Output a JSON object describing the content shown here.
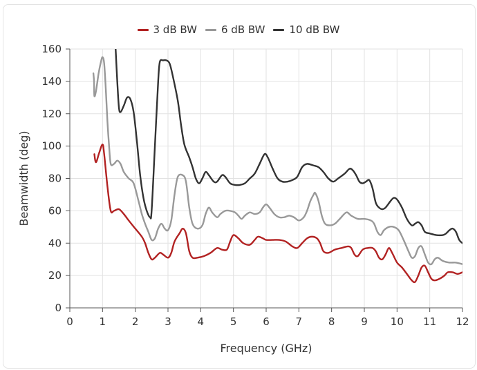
{
  "chart_data": {
    "type": "line",
    "title": "",
    "xlabel": "Frequency (GHz)",
    "ylabel": "Beamwidth (deg)",
    "xlim": [
      0,
      12
    ],
    "ylim": [
      0,
      160
    ],
    "xticks": [
      0,
      1,
      2,
      3,
      4,
      5,
      6,
      7,
      8,
      9,
      10,
      11,
      12
    ],
    "yticks": [
      0,
      20,
      40,
      60,
      80,
      100,
      120,
      140,
      160
    ],
    "grid": true,
    "legend_position": "top-center",
    "series": [
      {
        "name": "3 dB BW",
        "color": "#b22222",
        "points": [
          [
            0.75,
            95
          ],
          [
            0.8,
            90
          ],
          [
            0.9,
            96
          ],
          [
            1.0,
            101
          ],
          [
            1.05,
            95
          ],
          [
            1.15,
            75
          ],
          [
            1.25,
            60
          ],
          [
            1.35,
            60
          ],
          [
            1.5,
            61
          ],
          [
            1.65,
            58
          ],
          [
            1.8,
            54
          ],
          [
            2.0,
            49
          ],
          [
            2.2,
            44
          ],
          [
            2.3,
            40
          ],
          [
            2.4,
            34
          ],
          [
            2.5,
            30
          ],
          [
            2.6,
            31
          ],
          [
            2.75,
            34
          ],
          [
            2.85,
            33
          ],
          [
            3.0,
            31
          ],
          [
            3.1,
            34
          ],
          [
            3.2,
            41
          ],
          [
            3.35,
            46
          ],
          [
            3.45,
            49
          ],
          [
            3.55,
            46
          ],
          [
            3.65,
            35
          ],
          [
            3.75,
            31
          ],
          [
            3.9,
            31
          ],
          [
            4.1,
            32
          ],
          [
            4.3,
            34
          ],
          [
            4.5,
            37
          ],
          [
            4.65,
            36
          ],
          [
            4.8,
            36
          ],
          [
            4.9,
            41
          ],
          [
            5.0,
            45
          ],
          [
            5.15,
            43
          ],
          [
            5.3,
            40
          ],
          [
            5.5,
            39
          ],
          [
            5.65,
            42
          ],
          [
            5.75,
            44
          ],
          [
            5.9,
            43
          ],
          [
            6.0,
            42
          ],
          [
            6.2,
            42
          ],
          [
            6.4,
            42
          ],
          [
            6.6,
            41
          ],
          [
            6.8,
            38
          ],
          [
            6.95,
            37
          ],
          [
            7.1,
            40
          ],
          [
            7.25,
            43
          ],
          [
            7.4,
            44
          ],
          [
            7.55,
            43
          ],
          [
            7.65,
            40
          ],
          [
            7.75,
            35
          ],
          [
            7.9,
            34
          ],
          [
            8.1,
            36
          ],
          [
            8.3,
            37
          ],
          [
            8.5,
            38
          ],
          [
            8.6,
            37
          ],
          [
            8.7,
            33
          ],
          [
            8.8,
            32
          ],
          [
            8.95,
            36
          ],
          [
            9.1,
            37
          ],
          [
            9.25,
            37
          ],
          [
            9.35,
            35
          ],
          [
            9.45,
            31
          ],
          [
            9.55,
            30
          ],
          [
            9.65,
            33
          ],
          [
            9.75,
            37
          ],
          [
            9.85,
            34
          ],
          [
            10.0,
            28
          ],
          [
            10.15,
            25
          ],
          [
            10.3,
            21
          ],
          [
            10.45,
            17
          ],
          [
            10.55,
            16
          ],
          [
            10.65,
            20
          ],
          [
            10.75,
            25
          ],
          [
            10.85,
            26
          ],
          [
            10.95,
            22
          ],
          [
            11.05,
            18
          ],
          [
            11.15,
            17
          ],
          [
            11.3,
            18
          ],
          [
            11.45,
            20
          ],
          [
            11.55,
            22
          ],
          [
            11.7,
            22
          ],
          [
            11.85,
            21
          ],
          [
            12.0,
            22
          ]
        ]
      },
      {
        "name": "6 dB BW",
        "color": "#999999",
        "points": [
          [
            0.72,
            145
          ],
          [
            0.74,
            140
          ],
          [
            0.75,
            131
          ],
          [
            0.8,
            134
          ],
          [
            0.88,
            145
          ],
          [
            0.95,
            152
          ],
          [
            1.0,
            155
          ],
          [
            1.05,
            151
          ],
          [
            1.1,
            135
          ],
          [
            1.15,
            115
          ],
          [
            1.2,
            100
          ],
          [
            1.25,
            89
          ],
          [
            1.35,
            89
          ],
          [
            1.45,
            91
          ],
          [
            1.55,
            89
          ],
          [
            1.65,
            84
          ],
          [
            1.8,
            80
          ],
          [
            1.95,
            77
          ],
          [
            2.1,
            66
          ],
          [
            2.2,
            58
          ],
          [
            2.3,
            52
          ],
          [
            2.4,
            47
          ],
          [
            2.5,
            42
          ],
          [
            2.6,
            43
          ],
          [
            2.7,
            49
          ],
          [
            2.8,
            52
          ],
          [
            2.9,
            49
          ],
          [
            3.0,
            48
          ],
          [
            3.1,
            54
          ],
          [
            3.2,
            70
          ],
          [
            3.3,
            81
          ],
          [
            3.45,
            82
          ],
          [
            3.55,
            78
          ],
          [
            3.65,
            62
          ],
          [
            3.75,
            52
          ],
          [
            3.9,
            49
          ],
          [
            4.05,
            51
          ],
          [
            4.15,
            58
          ],
          [
            4.25,
            62
          ],
          [
            4.35,
            59
          ],
          [
            4.5,
            56
          ],
          [
            4.6,
            58
          ],
          [
            4.75,
            60
          ],
          [
            4.9,
            60
          ],
          [
            5.05,
            59
          ],
          [
            5.15,
            57
          ],
          [
            5.25,
            55
          ],
          [
            5.35,
            57
          ],
          [
            5.5,
            59
          ],
          [
            5.65,
            58
          ],
          [
            5.8,
            59
          ],
          [
            5.9,
            62
          ],
          [
            6.0,
            64
          ],
          [
            6.1,
            62
          ],
          [
            6.25,
            58
          ],
          [
            6.4,
            56
          ],
          [
            6.55,
            56
          ],
          [
            6.7,
            57
          ],
          [
            6.85,
            56
          ],
          [
            7.0,
            54
          ],
          [
            7.15,
            56
          ],
          [
            7.25,
            60
          ],
          [
            7.35,
            66
          ],
          [
            7.45,
            70
          ],
          [
            7.5,
            71
          ],
          [
            7.6,
            66
          ],
          [
            7.7,
            57
          ],
          [
            7.8,
            52
          ],
          [
            7.95,
            51
          ],
          [
            8.1,
            52
          ],
          [
            8.25,
            55
          ],
          [
            8.45,
            59
          ],
          [
            8.6,
            57
          ],
          [
            8.8,
            55
          ],
          [
            9.0,
            55
          ],
          [
            9.2,
            54
          ],
          [
            9.3,
            52
          ],
          [
            9.4,
            47
          ],
          [
            9.5,
            45
          ],
          [
            9.6,
            48
          ],
          [
            9.75,
            50
          ],
          [
            9.9,
            50
          ],
          [
            10.05,
            48
          ],
          [
            10.2,
            42
          ],
          [
            10.35,
            35
          ],
          [
            10.45,
            31
          ],
          [
            10.55,
            32
          ],
          [
            10.65,
            37
          ],
          [
            10.75,
            38
          ],
          [
            10.85,
            33
          ],
          [
            10.95,
            28
          ],
          [
            11.05,
            27
          ],
          [
            11.15,
            30
          ],
          [
            11.25,
            31
          ],
          [
            11.4,
            29
          ],
          [
            11.6,
            28
          ],
          [
            11.8,
            28
          ],
          [
            12.0,
            27
          ]
        ]
      },
      {
        "name": "10 dB BW",
        "color": "#333333",
        "points": [
          [
            1.4,
            160
          ],
          [
            1.45,
            140
          ],
          [
            1.5,
            124
          ],
          [
            1.55,
            121
          ],
          [
            1.65,
            125
          ],
          [
            1.75,
            130
          ],
          [
            1.85,
            129
          ],
          [
            1.95,
            121
          ],
          [
            2.05,
            103
          ],
          [
            2.15,
            82
          ],
          [
            2.25,
            68
          ],
          [
            2.35,
            60
          ],
          [
            2.45,
            56
          ],
          [
            2.5,
            60
          ],
          [
            2.6,
            100
          ],
          [
            2.7,
            140
          ],
          [
            2.75,
            152
          ],
          [
            2.85,
            153
          ],
          [
            2.95,
            153
          ],
          [
            3.05,
            151
          ],
          [
            3.15,
            143
          ],
          [
            3.3,
            128
          ],
          [
            3.4,
            113
          ],
          [
            3.5,
            101
          ],
          [
            3.65,
            93
          ],
          [
            3.75,
            87
          ],
          [
            3.85,
            80
          ],
          [
            3.95,
            77
          ],
          [
            4.05,
            80
          ],
          [
            4.15,
            84
          ],
          [
            4.25,
            82
          ],
          [
            4.4,
            78
          ],
          [
            4.5,
            78
          ],
          [
            4.65,
            82
          ],
          [
            4.75,
            81
          ],
          [
            4.9,
            77
          ],
          [
            5.05,
            76
          ],
          [
            5.2,
            76
          ],
          [
            5.35,
            77
          ],
          [
            5.5,
            80
          ],
          [
            5.65,
            83
          ],
          [
            5.8,
            89
          ],
          [
            5.95,
            95
          ],
          [
            6.05,
            93
          ],
          [
            6.2,
            86
          ],
          [
            6.35,
            80
          ],
          [
            6.5,
            78
          ],
          [
            6.65,
            78
          ],
          [
            6.8,
            79
          ],
          [
            6.95,
            81
          ],
          [
            7.1,
            87
          ],
          [
            7.25,
            89
          ],
          [
            7.45,
            88
          ],
          [
            7.6,
            87
          ],
          [
            7.75,
            84
          ],
          [
            7.9,
            80
          ],
          [
            8.05,
            78
          ],
          [
            8.2,
            80
          ],
          [
            8.4,
            83
          ],
          [
            8.55,
            86
          ],
          [
            8.65,
            85
          ],
          [
            8.75,
            82
          ],
          [
            8.85,
            78
          ],
          [
            8.95,
            77
          ],
          [
            9.05,
            78
          ],
          [
            9.15,
            79
          ],
          [
            9.25,
            74
          ],
          [
            9.35,
            65
          ],
          [
            9.45,
            62
          ],
          [
            9.55,
            61
          ],
          [
            9.65,
            62
          ],
          [
            9.8,
            66
          ],
          [
            9.9,
            68
          ],
          [
            10.0,
            67
          ],
          [
            10.15,
            62
          ],
          [
            10.3,
            55
          ],
          [
            10.45,
            51
          ],
          [
            10.55,
            52
          ],
          [
            10.65,
            53
          ],
          [
            10.75,
            51
          ],
          [
            10.85,
            47
          ],
          [
            11.0,
            46
          ],
          [
            11.2,
            45
          ],
          [
            11.4,
            45
          ],
          [
            11.5,
            46
          ],
          [
            11.6,
            48
          ],
          [
            11.7,
            49
          ],
          [
            11.8,
            47
          ],
          [
            11.9,
            42
          ],
          [
            12.0,
            40
          ]
        ]
      }
    ]
  }
}
